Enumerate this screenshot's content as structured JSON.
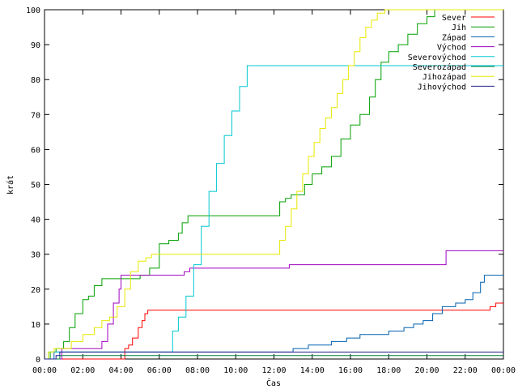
{
  "chart_data": {
    "type": "line",
    "xlabel": "Čas",
    "ylabel": "krát",
    "ylim": [
      0,
      100
    ],
    "xlim": [
      0,
      24
    ],
    "grid": false,
    "legend_placement": "top-right",
    "x_ticks": [
      {
        "value": 0,
        "label": "00:00"
      },
      {
        "value": 2,
        "label": "02:00"
      },
      {
        "value": 4,
        "label": "04:00"
      },
      {
        "value": 6,
        "label": "06:00"
      },
      {
        "value": 8,
        "label": "08:00"
      },
      {
        "value": 10,
        "label": "10:00"
      },
      {
        "value": 12,
        "label": "12:00"
      },
      {
        "value": 14,
        "label": "14:00"
      },
      {
        "value": 16,
        "label": "16:00"
      },
      {
        "value": 18,
        "label": "18:00"
      },
      {
        "value": 20,
        "label": "20:00"
      },
      {
        "value": 22,
        "label": "22:00"
      },
      {
        "value": 24,
        "label": "00:00"
      }
    ],
    "y_ticks": [
      0,
      10,
      20,
      30,
      40,
      50,
      60,
      70,
      80,
      90,
      100
    ],
    "series": [
      {
        "name": "Sever",
        "color": "#ff0000",
        "x": [
          0,
          4.0,
          4.2,
          4.4,
          4.6,
          4.9,
          5.1,
          5.25,
          5.4,
          8,
          12,
          16,
          20,
          23.0,
          23.3,
          23.6,
          24
        ],
        "y": [
          0,
          0,
          3,
          4,
          6,
          9,
          11,
          13,
          14,
          14,
          14,
          14,
          14,
          14,
          15,
          16,
          16
        ]
      },
      {
        "name": "Jih",
        "color": "#00a000",
        "x": [
          0,
          0.3,
          0.6,
          1.0,
          1.3,
          1.6,
          2.0,
          2.3,
          2.6,
          3.0,
          4.5,
          5.0,
          5.5,
          6.0,
          6.5,
          7.0,
          7.2,
          7.5,
          10,
          12.0,
          12.3,
          12.6,
          12.9,
          13.3,
          13.6,
          14.0,
          14.5,
          15.0,
          15.5,
          16.0,
          16.5,
          17.0,
          17.3,
          17.6,
          18.0,
          18.5,
          19.0,
          19.5,
          20.0,
          20.4,
          24
        ],
        "y": [
          0,
          2,
          3,
          5,
          9,
          13,
          17,
          18,
          21,
          23,
          23,
          24,
          26,
          33,
          34,
          36,
          39,
          41,
          41,
          41,
          45,
          46,
          47,
          47,
          50,
          53,
          55,
          58,
          63,
          67,
          70,
          75,
          80,
          85,
          88,
          90,
          93,
          96,
          98,
          100,
          100
        ]
      },
      {
        "name": "Západ",
        "color": "#0060b0",
        "x": [
          0,
          0.3,
          0.5,
          6,
          12.0,
          12.2,
          13.0,
          13.8,
          14.5,
          15.0,
          15.8,
          16.5,
          17.5,
          18.0,
          18.8,
          19.3,
          19.8,
          20.3,
          20.8,
          21.5,
          22.0,
          22.4,
          22.8,
          23.0,
          24
        ],
        "y": [
          0,
          0,
          2,
          2,
          2,
          2,
          3,
          4,
          4,
          5,
          6,
          7,
          7,
          8,
          9,
          10,
          11,
          13,
          15,
          16,
          17,
          19,
          22,
          24,
          24
        ]
      },
      {
        "name": "Východ",
        "color": "#a000c0",
        "x": [
          0,
          0.7,
          0.9,
          2.0,
          2.6,
          3.0,
          3.3,
          3.6,
          3.9,
          4.0,
          7.0,
          7.3,
          7.6,
          10,
          12.5,
          12.8,
          16,
          20.8,
          21.0,
          24
        ],
        "y": [
          0,
          0,
          3,
          3,
          3,
          5,
          10,
          16,
          20,
          24,
          24,
          25,
          26,
          26,
          26,
          27,
          27,
          27,
          31,
          31
        ]
      },
      {
        "name": "Severovýchod",
        "color": "#00c8d0",
        "x": [
          0,
          0.2,
          0.4,
          6.4,
          6.7,
          7.0,
          7.4,
          7.8,
          8.2,
          8.6,
          9.0,
          9.4,
          9.8,
          10.2,
          10.6,
          24
        ],
        "y": [
          0,
          2,
          2,
          2,
          8,
          12,
          18,
          27,
          38,
          48,
          56,
          64,
          71,
          78,
          84,
          84
        ]
      },
      {
        "name": "Severozápad",
        "color": "#008040",
        "x": [
          0,
          0.5,
          0.8,
          1.0,
          24
        ],
        "y": [
          0,
          0,
          1,
          1,
          1
        ]
      },
      {
        "name": "Jihozápad",
        "color": "#e8e800",
        "x": [
          0,
          0.2,
          0.5,
          1.0,
          1.4,
          2.0,
          2.6,
          3.0,
          3.4,
          3.8,
          4.2,
          4.5,
          4.9,
          5.3,
          5.6,
          6.0,
          8,
          10,
          12.0,
          12.3,
          12.6,
          12.9,
          13.2,
          13.5,
          13.8,
          14.1,
          14.4,
          14.7,
          15.0,
          15.3,
          15.6,
          15.9,
          16.2,
          16.5,
          16.8,
          17.1,
          17.4,
          17.8,
          24
        ],
        "y": [
          0,
          2,
          3,
          3,
          5,
          7,
          9,
          11,
          12,
          15,
          20,
          25,
          28,
          29,
          30,
          30,
          30,
          30,
          30,
          34,
          38,
          43,
          48,
          53,
          58,
          62,
          66,
          69,
          72,
          76,
          80,
          84,
          88,
          92,
          95,
          97,
          99,
          100,
          100
        ]
      },
      {
        "name": "Jihovýchod",
        "color": "#202090",
        "x": [
          0,
          0.4,
          0.6,
          0.8,
          1.0,
          24
        ],
        "y": [
          0,
          0,
          1,
          2,
          2,
          2
        ]
      }
    ]
  }
}
